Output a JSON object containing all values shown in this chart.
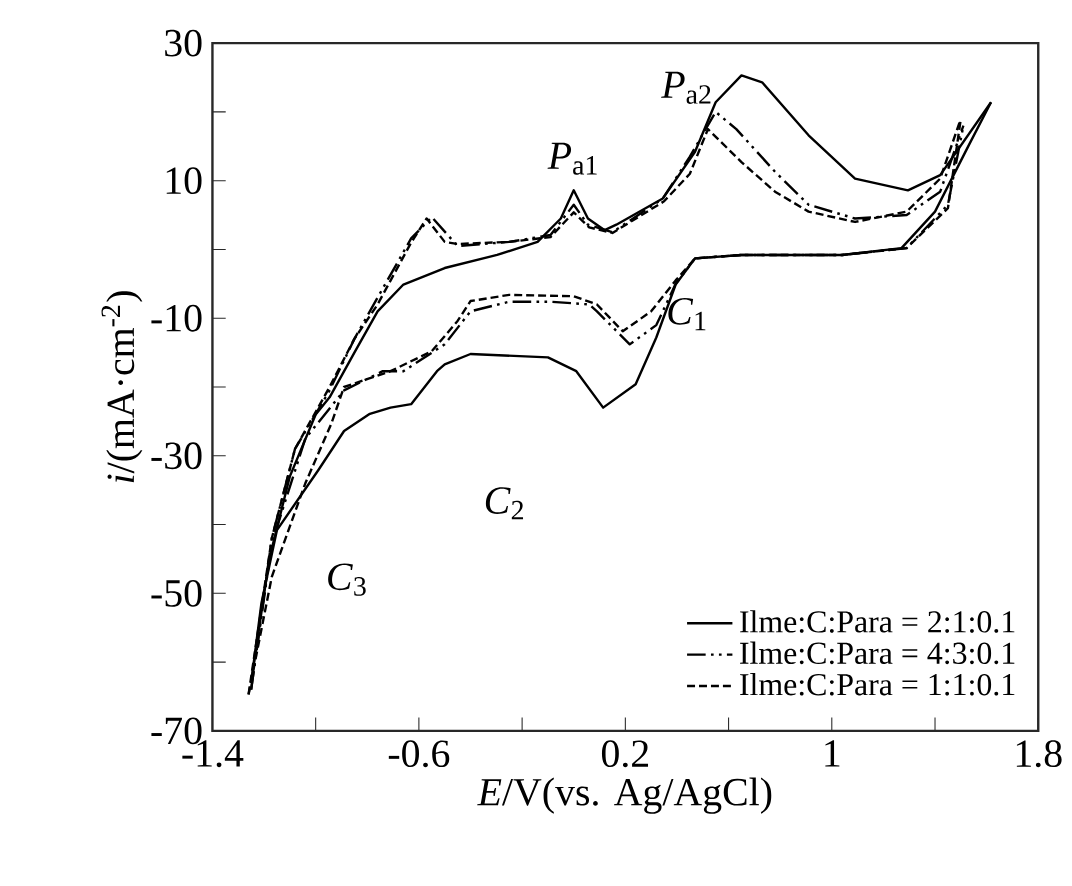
{
  "chart_data": {
    "type": "line",
    "xlabel": "*E*/V(vs. Ag/AgCl)",
    "ylabel": "*i*/(mA·cm$^{-2}$)",
    "xlim": [
      -1.4,
      1.8
    ],
    "ylim": [
      -70,
      30
    ],
    "xticks": [
      -1.4,
      {
        "value": -1.0,
        "label": null
      },
      -0.6,
      {
        "value": -0.2,
        "label": null
      },
      0.2,
      {
        "value": 0.6,
        "label": null
      },
      1,
      {
        "value": 1.4,
        "label": null
      },
      1.8
    ],
    "yticks": [
      -70,
      {
        "value": -60,
        "label": null
      },
      -50,
      {
        "value": -40,
        "label": null
      },
      -30,
      {
        "value": -20,
        "label": null
      },
      -10,
      {
        "value": 0,
        "label": null
      },
      10,
      {
        "value": 20,
        "label": null
      },
      30
    ],
    "legend": "bottom right",
    "series": [
      {
        "color": "#000000",
        "line_style": "solid",
        "x": [
          -1.25,
          -1.21,
          -1.15,
          -0.99,
          -0.89,
          -0.79,
          -0.71,
          -0.63,
          -0.53,
          -0.5,
          -0.4,
          -0.1,
          0.01,
          0.114,
          0.24,
          0.32,
          0.395,
          0.47,
          0.65,
          1.04,
          1.27,
          1.4,
          1.53,
          1.617
        ],
        "values": [
          -63,
          -51.4,
          -40.8,
          -32.1,
          -26.4,
          -23.9,
          -23,
          -22.5,
          -17.7,
          -16.7,
          -15.2,
          -15.7,
          -17.7,
          -23,
          -19.6,
          -12.8,
          -5.1,
          -1.3,
          -0.8,
          -0.8,
          0.2,
          5.5,
          15.1,
          21.4
        ]
      },
      {
        "color": "#000000",
        "line_style": "dashdot",
        "x": [
          -1.25,
          -1.17,
          -1.04,
          -0.89,
          -0.74,
          -0.66,
          -0.5,
          -0.4,
          -0.25,
          -0.09,
          0.06,
          0.09,
          0.217,
          0.32,
          0.395,
          0.47,
          0.65,
          1.04,
          1.29,
          1.45,
          1.51
        ],
        "values": [
          -64,
          -42.7,
          -27.5,
          -20.5,
          -17.7,
          -17.7,
          -13.8,
          -9,
          -7.6,
          -7.6,
          -8,
          -9,
          -13.8,
          -11,
          -5,
          -1.3,
          -0.8,
          -0.8,
          0.2,
          6.5,
          18
        ]
      },
      {
        "color": "#000000",
        "line_style": "dashed",
        "x": [
          -1.26,
          -1.17,
          -1.04,
          -0.94,
          -0.89,
          -0.71,
          -0.55,
          -0.45,
          -0.4,
          -0.25,
          0.0,
          0.09,
          0.19,
          0.3,
          0.395,
          0.47,
          0.65,
          1.04,
          1.29,
          1.45,
          1.5
        ],
        "values": [
          -64.7,
          -47.6,
          -34,
          -25.4,
          -20,
          -17.7,
          -14.8,
          -10.4,
          -7.5,
          -6.6,
          -6.8,
          -8,
          -11.9,
          -9,
          -4.5,
          -1.3,
          -0.8,
          -0.8,
          0.2,
          6,
          19
        ]
      },
      {
        "name": "Ilme:C:Para = 2:1:0.1",
        "color": "#000000",
        "line_style": "solid",
        "x": [
          -1.25,
          -1.18,
          -1.1,
          -1.0,
          -0.946,
          -0.85,
          -0.76,
          -0.66,
          -0.5,
          -0.297,
          -0.14,
          -0.05,
          0.0,
          0.055,
          0.12,
          0.165,
          0.345,
          0.47,
          0.55,
          0.65,
          0.73,
          0.91,
          1.09,
          1.295,
          1.42,
          1.617
        ],
        "values": [
          -63,
          -45,
          -33,
          -24,
          -21.5,
          -15,
          -9,
          -5.1,
          -2.7,
          -0.8,
          1.1,
          4.5,
          8.6,
          4.5,
          2.8,
          3.6,
          7.4,
          14.2,
          21.4,
          25.3,
          24.3,
          16.6,
          10.3,
          8.6,
          10.8,
          21.4
        ]
      },
      {
        "name": "Ilme:C:Para = 4:3:0.1",
        "color": "#000000",
        "line_style": "dashdot",
        "x": [
          -1.25,
          -1.17,
          -1.08,
          -0.946,
          -0.85,
          -0.76,
          -0.63,
          -0.55,
          -0.5,
          -0.45,
          -0.25,
          -0.09,
          0.0,
          0.055,
          0.15,
          0.345,
          0.45,
          0.55,
          0.63,
          0.78,
          0.91,
          1.09,
          1.29,
          1.42,
          1.51
        ],
        "values": [
          -64,
          -42,
          -29,
          -20.5,
          -13,
          -7,
          1.6,
          4.7,
          2.6,
          0.5,
          1.1,
          2.1,
          6.5,
          3.6,
          2.5,
          7.4,
          13.5,
          20,
          17.5,
          11.3,
          6.5,
          4.5,
          5,
          8.4,
          18
        ]
      },
      {
        "name": "Ilme:C:Para = 1:1:0.1",
        "color": "#000000",
        "line_style": "dashed",
        "x": [
          -1.26,
          -1.17,
          -1.08,
          -0.946,
          -0.85,
          -0.76,
          -0.63,
          -0.57,
          -0.5,
          -0.45,
          -0.25,
          -0.09,
          0.0,
          0.06,
          0.15,
          0.35,
          0.45,
          0.52,
          0.65,
          0.78,
          0.91,
          1.09,
          1.29,
          1.42,
          1.5
        ],
        "values": [
          -64.7,
          -42,
          -29,
          -20,
          -13,
          -8,
          1,
          4.5,
          1.1,
          0.8,
          1.1,
          1.8,
          5.4,
          3.2,
          2.4,
          7,
          11,
          17.5,
          12.7,
          8.4,
          5.5,
          4,
          5.5,
          10.3,
          19
        ]
      }
    ],
    "annotations": [
      "*P*$_{a1}$",
      "*P*$_{a2}$",
      "*C*$_{1}$",
      "*C*$_{2}$",
      "*C*$_{3}$"
    ]
  }
}
